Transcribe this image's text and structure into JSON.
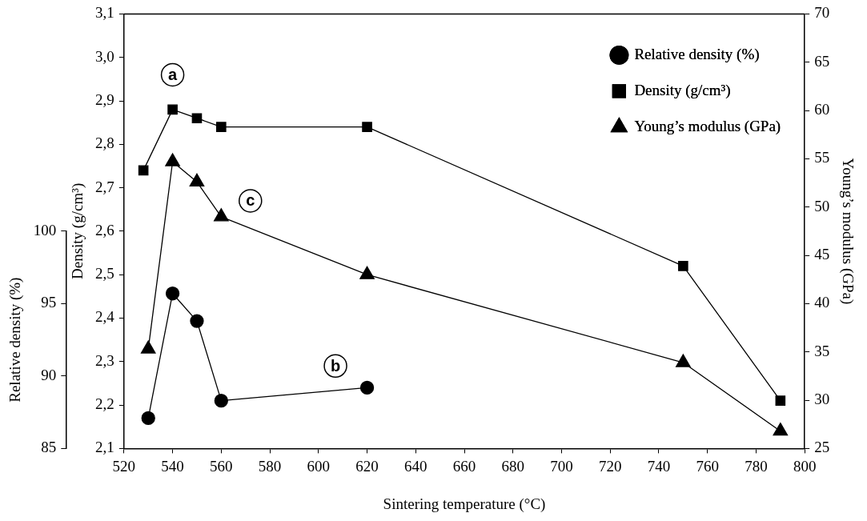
{
  "chart_data": {
    "type": "line",
    "xlabel": "Sintering temperature (°C)",
    "ylabel": "Density (g/cm³)",
    "y2label": "Young’s modulus (GPa)",
    "y3label": "Relative density (%)",
    "xlim": [
      520,
      800
    ],
    "xticks": [
      520,
      540,
      560,
      580,
      600,
      620,
      640,
      660,
      680,
      700,
      720,
      740,
      760,
      780,
      800
    ],
    "ylim": [
      2.1,
      3.1
    ],
    "yticks": [
      {
        "value": 2.1,
        "label": "2,1"
      },
      {
        "value": 2.2,
        "label": "2,2"
      },
      {
        "value": 2.3,
        "label": "2,3"
      },
      {
        "value": 2.4,
        "label": "2,4"
      },
      {
        "value": 2.5,
        "label": "2,5"
      },
      {
        "value": 2.6,
        "label": "2,6"
      },
      {
        "value": 2.7,
        "label": "2,7"
      },
      {
        "value": 2.8,
        "label": "2,8"
      },
      {
        "value": 2.9,
        "label": "2,9"
      },
      {
        "value": 3.0,
        "label": "3,0"
      },
      {
        "value": 3.1,
        "label": "3,1"
      }
    ],
    "y2lim": [
      25,
      70
    ],
    "y2ticks": [
      25,
      30,
      35,
      40,
      45,
      50,
      55,
      60,
      65,
      70
    ],
    "y3lim": [
      85,
      100
    ],
    "y3ticks": [
      85,
      90,
      95,
      100
    ],
    "series": [
      {
        "name": "Relative density (%)",
        "color": "#000000",
        "marker": "circle",
        "axis": "y3",
        "x": [
          530,
          540,
          550,
          560,
          620
        ],
        "values": [
          87.1,
          95.7,
          93.8,
          88.3,
          89.2
        ]
      },
      {
        "name": "Density (g/cm³)",
        "color": "#000000",
        "marker": "square",
        "x": [
          528,
          540,
          550,
          560,
          620,
          750,
          790
        ],
        "values": [
          2.74,
          2.88,
          2.86,
          2.84,
          2.84,
          2.52,
          2.21
        ]
      },
      {
        "name": "Young’s modulus (GPa)",
        "color": "#000000",
        "marker": "triangle",
        "axis": "y2",
        "x": [
          530,
          540,
          550,
          560,
          620,
          750,
          790
        ],
        "values": [
          35.3,
          54.7,
          52.6,
          49.0,
          43.0,
          33.9,
          26.8
        ]
      }
    ],
    "annotations": [
      {
        "text": "a",
        "x": 540,
        "y": 2.96
      },
      {
        "text": "b",
        "x": 607,
        "y": 2.29
      },
      {
        "text": "c",
        "x": 572,
        "y": 2.67
      }
    ],
    "legend": "top right",
    "grid": false,
    "line_style": "solid"
  }
}
